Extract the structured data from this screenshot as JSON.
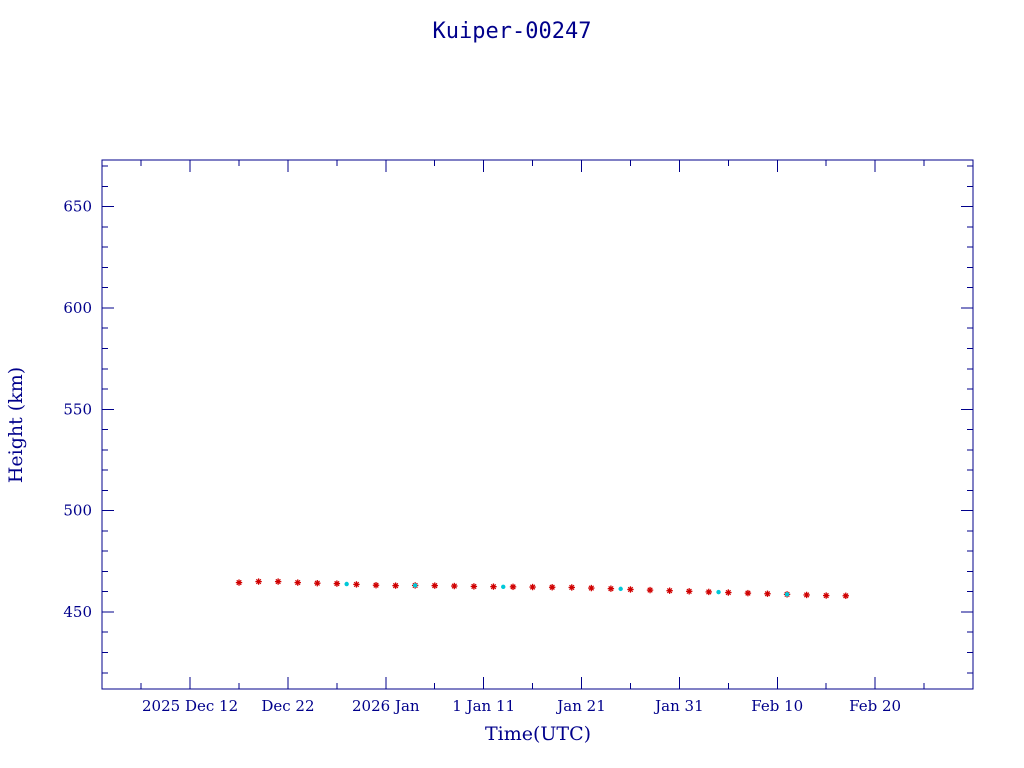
{
  "chart_data": {
    "type": "scatter",
    "title": "Kuiper-00247",
    "xlabel": "Time(UTC)",
    "ylabel": "Height (km)",
    "xlim": [
      "2025-12-03",
      "2026-03-02"
    ],
    "ylim": [
      412,
      673
    ],
    "grid": false,
    "xticks": [
      {
        "date": "2025-12-12",
        "label": "2025 Dec 12"
      },
      {
        "date": "2025-12-22",
        "label": "Dec 22"
      },
      {
        "date": "2026-01-01",
        "label": "2026 Jan"
      },
      {
        "date": "2026-01-11",
        "label": "1 Jan 11"
      },
      {
        "date": "2026-01-21",
        "label": "Jan 21"
      },
      {
        "date": "2026-01-31",
        "label": "Jan 31"
      },
      {
        "date": "2026-02-10",
        "label": "Feb 10"
      },
      {
        "date": "2026-02-20",
        "label": "Feb 20"
      }
    ],
    "yticks": [
      450,
      500,
      550,
      600,
      650
    ],
    "series": [
      {
        "marker": "star",
        "color": "#d00000",
        "x": [
          "2025-12-17",
          "2025-12-19",
          "2025-12-21",
          "2025-12-23",
          "2025-12-25",
          "2025-12-27",
          "2025-12-29",
          "2025-12-31",
          "2026-01-02",
          "2026-01-04",
          "2026-01-06",
          "2026-01-08",
          "2026-01-10",
          "2026-01-12",
          "2026-01-14",
          "2026-01-16",
          "2026-01-18",
          "2026-01-20",
          "2026-01-22",
          "2026-01-24",
          "2026-01-26",
          "2026-01-28",
          "2026-01-30",
          "2026-02-01",
          "2026-02-03",
          "2026-02-05",
          "2026-02-07",
          "2026-02-09",
          "2026-02-11",
          "2026-02-13",
          "2026-02-15",
          "2026-02-17"
        ],
        "y": [
          464.5,
          465.0,
          465.0,
          464.5,
          464.2,
          464.0,
          463.6,
          463.2,
          463.0,
          463.1,
          463.0,
          462.8,
          462.6,
          462.5,
          462.4,
          462.3,
          462.2,
          462.1,
          461.8,
          461.5,
          461.1,
          460.8,
          460.5,
          460.2,
          459.9,
          459.6,
          459.3,
          459.0,
          458.7,
          458.4,
          458.1,
          458.0
        ]
      },
      {
        "marker": "dot",
        "color": "#00c8d8",
        "x": [
          "2025-12-28",
          "2026-01-04",
          "2026-01-13",
          "2026-01-25",
          "2026-02-04",
          "2026-02-11"
        ],
        "y": [
          463.8,
          463.1,
          462.4,
          461.4,
          459.8,
          458.7
        ]
      }
    ]
  }
}
